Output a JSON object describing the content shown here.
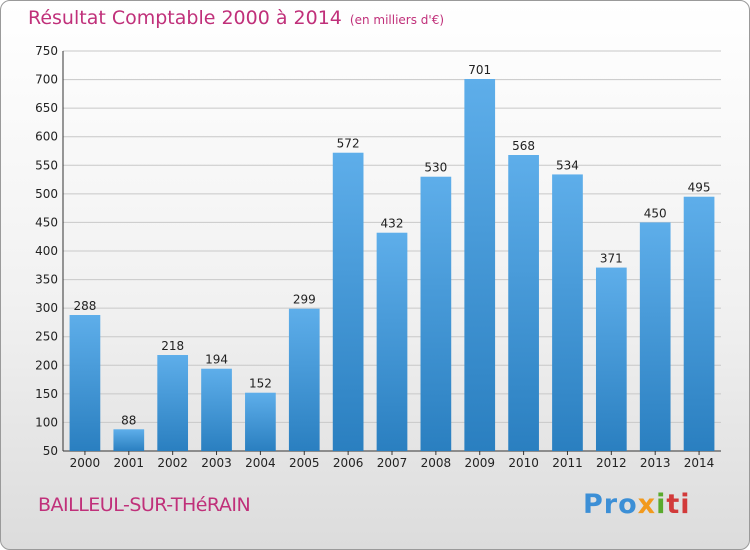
{
  "header": {
    "title": "Résultat Comptable 2000 à 2014",
    "unit": "(en milliers d'€)"
  },
  "footer": {
    "commune": "BAILLEUL-SUR-THéRAIN",
    "logo_parts": [
      "Pro",
      "x",
      "i",
      "ti"
    ]
  },
  "colors": {
    "title": "#c0307a",
    "bar_top": "#5eaeea",
    "bar_bottom": "#2a7fc0"
  },
  "chart_data": {
    "type": "bar",
    "title": "Résultat Comptable 2000 à 2014",
    "xlabel": "",
    "ylabel": "",
    "categories": [
      "2000",
      "2001",
      "2002",
      "2003",
      "2004",
      "2005",
      "2006",
      "2007",
      "2008",
      "2009",
      "2010",
      "2011",
      "2012",
      "2013",
      "2014"
    ],
    "values": [
      288,
      88,
      218,
      194,
      152,
      299,
      572,
      432,
      530,
      701,
      568,
      534,
      371,
      450,
      495
    ],
    "ylim": [
      50,
      750
    ],
    "yticks": [
      50,
      100,
      150,
      200,
      250,
      300,
      350,
      400,
      450,
      500,
      550,
      600,
      650,
      700,
      750
    ],
    "grid": true,
    "legend": "none"
  }
}
